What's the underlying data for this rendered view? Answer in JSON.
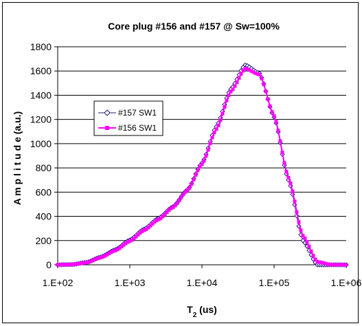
{
  "chart_data": {
    "type": "line",
    "title": "Core plug #156 and #157 @ Sw=100%",
    "xlabel_main": "T",
    "xlabel_sub": "2",
    "xlabel_unit": " (us)",
    "ylabel": "A m p l i t u d e  (a.u.)",
    "x_scale": "log",
    "xlim": [
      100,
      1000000
    ],
    "ylim": [
      0,
      1800
    ],
    "x_ticks": [
      100,
      1000,
      10000,
      100000,
      1000000
    ],
    "x_tick_labels": [
      "1.E+02",
      "1.E+03",
      "1.E+04",
      "1.E+05",
      "1.E+06"
    ],
    "y_ticks": [
      0,
      200,
      400,
      600,
      800,
      1000,
      1200,
      1400,
      1600,
      1800
    ],
    "grid": "horizontal",
    "legend_position": "left-middle",
    "series": [
      {
        "name": "#157 SW1",
        "color": "#1c1c78",
        "marker": "diamond-open",
        "x": [
          100,
          158,
          251,
          398,
          631,
          1000,
          1585,
          2512,
          3981,
          6310,
          10000,
          15849,
          25119,
          39811,
          63096,
          100000,
          158489,
          251189,
          398107,
          630957,
          1000000
        ],
        "y": [
          0,
          2,
          20,
          65,
          125,
          205,
          295,
          385,
          480,
          620,
          840,
          1140,
          1450,
          1650,
          1580,
          1220,
          700,
          200,
          0,
          0,
          0
        ]
      },
      {
        "name": "#156 SW1",
        "color": "#ff00ff",
        "marker": "square",
        "x": [
          100,
          158,
          251,
          398,
          631,
          1000,
          1585,
          2512,
          3981,
          6310,
          10000,
          15849,
          25119,
          39811,
          63096,
          100000,
          158489,
          251189,
          398107,
          630957,
          1000000
        ],
        "y": [
          0,
          2,
          18,
          60,
          118,
          195,
          285,
          375,
          475,
          615,
          830,
          1120,
          1430,
          1620,
          1570,
          1230,
          720,
          240,
          25,
          0,
          0
        ]
      }
    ]
  }
}
